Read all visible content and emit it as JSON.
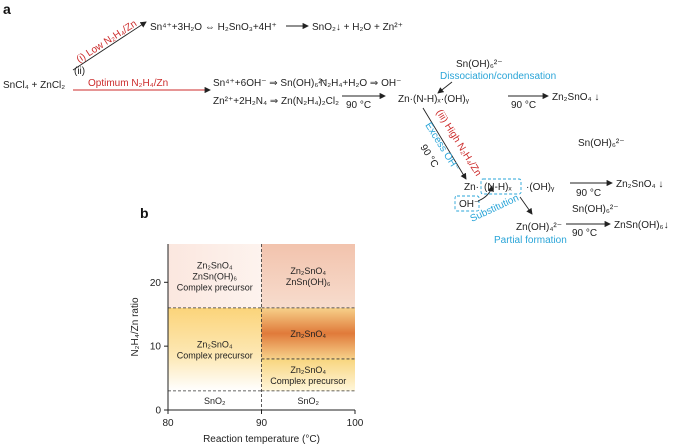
{
  "panel_a": {
    "label": "a",
    "reactant": "SnCl₄ + ZnCl₂",
    "path_i": {
      "condition": "(i) Low N₂H₄/Zn",
      "eq1": "Sn⁴⁺+3H₂O ⇔ H₂SnO₃+4H⁺",
      "eq2": "SnO₂↓ + H₂O + Zn²⁺"
    },
    "path_ii": {
      "marker": "(ii)",
      "condition": "Optimum N₂H₄/Zn",
      "eq1": "Sn⁴⁺+6OH⁻ ⇒ Sn(OH)₆²⁻",
      "eq1b": "N₂H₄+H₂O ⇒ OH⁻",
      "eq2": "Zn²⁺+2H₂N₄ ⇒ Zn(N₂H₄)₂Cl₂",
      "temp": "90 °C"
    },
    "complex": "Zn·(N-H)ₓ·(OH)ᵧ",
    "sn_oh6_top": "Sn(OH)₆²⁻",
    "dissociation": "Dissociation/condensation",
    "temp2": "90 °C",
    "product1": "Zn₂SnO₄ ↓",
    "path_iii": {
      "condition": "(iii) High N₂H₄/Zn",
      "excess": "Excess OH⁻",
      "temp": "90 °C"
    },
    "complex2_zn": "Zn·",
    "complex2_nh": "(N-H)ₓ",
    "complex2_oh": "·(OH)ᵧ",
    "oh_box": "OH⁻",
    "substitution": "Substitution",
    "partial": "Partial formation",
    "zn_oh4": "Zn(OH)₄²⁻",
    "sn_oh6_b1": "Sn(OH)₆²⁻",
    "temp3": "90 °C",
    "product2": "Zn₂SnO₄ ↓",
    "sn_oh6_b2": "Sn(OH)₆²⁻",
    "temp4": "90 °C",
    "product3": "ZnSn(OH)₆↓"
  },
  "chart_data": {
    "type": "heatmap",
    "panel_label": "b",
    "xlabel": "Reaction temperature (°C)",
    "ylabel": "N₂H₄/Zn ratio",
    "xlim": [
      80,
      100
    ],
    "ylim": [
      0,
      26
    ],
    "xticks": [
      80,
      90,
      100
    ],
    "yticks": [
      0,
      10,
      20
    ],
    "x_boundaries": [
      90
    ],
    "y_boundaries_left": [
      3,
      16
    ],
    "y_boundaries_right": [
      3,
      8,
      16
    ],
    "regions": [
      {
        "x": [
          80,
          90
        ],
        "y": [
          0,
          3
        ],
        "lines": [
          "SnO₂"
        ],
        "color": "#ffffff"
      },
      {
        "x": [
          80,
          90
        ],
        "y": [
          3,
          16
        ],
        "lines": [
          "Zn₂SnO₄",
          "Complex precursor"
        ],
        "color": "#fbd98a"
      },
      {
        "x": [
          80,
          90
        ],
        "y": [
          16,
          26
        ],
        "lines": [
          "Zn₂SnO₄",
          "ZnSn(OH)₆",
          "Complex precursor"
        ],
        "color": "#fbe6df"
      },
      {
        "x": [
          90,
          100
        ],
        "y": [
          0,
          3
        ],
        "lines": [
          "SnO₂"
        ],
        "color": "#ffffff"
      },
      {
        "x": [
          90,
          100
        ],
        "y": [
          3,
          8
        ],
        "lines": [
          "Zn₂SnO₄",
          "Complex precursor"
        ],
        "color": "#fbdf8e"
      },
      {
        "x": [
          90,
          100
        ],
        "y": [
          8,
          16
        ],
        "lines": [
          "Zn₂SnO₄"
        ],
        "color": "#e07a3a"
      },
      {
        "x": [
          90,
          100
        ],
        "y": [
          16,
          26
        ],
        "lines": [
          "Zn₂SnO₄",
          "ZnSn(OH)₆"
        ],
        "color": "#f4c7b2"
      }
    ]
  }
}
